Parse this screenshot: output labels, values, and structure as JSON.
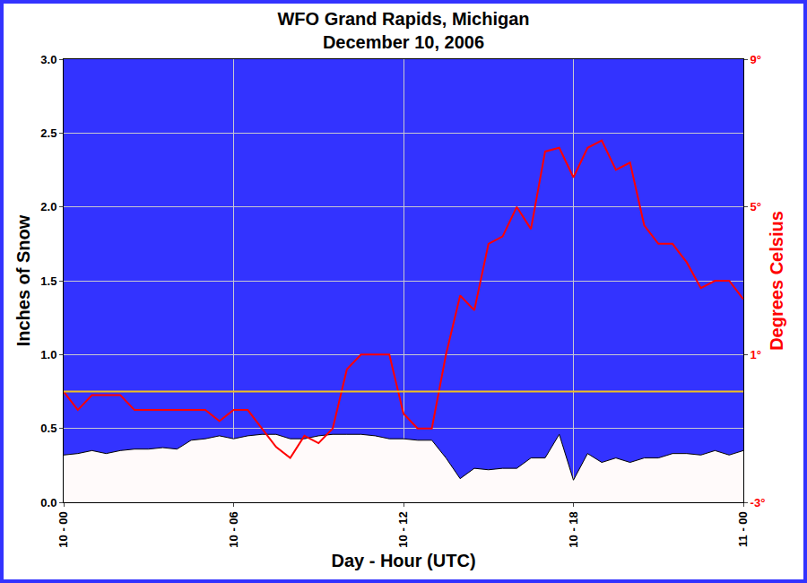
{
  "chart_data": {
    "type": "line",
    "title": "WFO Grand Rapids, Michigan",
    "subtitle": "December 10, 2006",
    "x_label": "Day - Hour (UTC)",
    "y_label": "Inches of Snow",
    "y2_label": "Degrees Celsius",
    "x": [
      0,
      0.5,
      1,
      1.5,
      2,
      2.5,
      3,
      3.5,
      4,
      4.5,
      5,
      5.5,
      6,
      6.5,
      7,
      7.5,
      8,
      8.5,
      9,
      9.5,
      10,
      10.5,
      11,
      11.5,
      12,
      12.5,
      13,
      13.5,
      14,
      14.5,
      15,
      15.5,
      16,
      16.5,
      17,
      17.5,
      18,
      18.5,
      19,
      19.5,
      20,
      20.5,
      21,
      21.5,
      22,
      22.5,
      23,
      23.5,
      24
    ],
    "series": [
      {
        "type": "area",
        "color": "#fffafa",
        "values": [
          0.32,
          0.33,
          0.35,
          0.33,
          0.35,
          0.36,
          0.36,
          0.37,
          0.36,
          0.42,
          0.43,
          0.45,
          0.43,
          0.45,
          0.46,
          0.46,
          0.43,
          0.43,
          0.45,
          0.46,
          0.46,
          0.46,
          0.45,
          0.43,
          0.43,
          0.42,
          0.42,
          0.3,
          0.16,
          0.23,
          0.22,
          0.23,
          0.23,
          0.3,
          0.3,
          0.46,
          0.15,
          0.33,
          0.27,
          0.3,
          0.27,
          0.3,
          0.3,
          0.33,
          0.33,
          0.32,
          0.35,
          0.32,
          0.35
        ]
      },
      {
        "type": "line",
        "color": "#ff0000",
        "axis": "y2",
        "values": [
          0.0,
          -0.5,
          -0.1,
          -0.1,
          -0.1,
          -0.5,
          -0.5,
          -0.5,
          -0.5,
          -0.5,
          -0.5,
          -0.8,
          -0.5,
          -0.5,
          -1.0,
          -1.5,
          -1.8,
          -1.2,
          -1.4,
          -1.0,
          0.6,
          1.0,
          1.0,
          1.0,
          -0.6,
          -1.0,
          -1.0,
          1.0,
          2.6,
          2.2,
          4.0,
          4.2,
          5.0,
          4.4,
          6.5,
          6.6,
          5.8,
          6.6,
          6.8,
          6.0,
          6.2,
          4.5,
          4.0,
          4.0,
          3.5,
          2.8,
          3.0,
          3.0,
          2.5
        ]
      }
    ],
    "reference_lines": [
      {
        "value": 0,
        "axis": "y2",
        "color": "#f0c020"
      }
    ],
    "xlim": [
      0,
      24
    ],
    "xticks": [
      {
        "value": 0,
        "label": "10 - 00"
      },
      {
        "value": 6,
        "label": "10 - 06"
      },
      {
        "value": 12,
        "label": "10 - 12"
      },
      {
        "value": 18,
        "label": "10 - 18"
      },
      {
        "value": 24,
        "label": "11 - 00"
      }
    ],
    "ylim": [
      0,
      3
    ],
    "yticks": [
      {
        "value": 0,
        "label": "0.0"
      },
      0.5,
      {
        "value": 1,
        "label": "1.0"
      },
      1.5,
      {
        "value": 2,
        "label": "2.0"
      },
      2.5,
      {
        "value": 3,
        "label": "3.0"
      }
    ],
    "y2lim": [
      -3,
      9
    ],
    "y2ticks": [
      {
        "value": -3,
        "label": "-3°"
      },
      {
        "value": 1,
        "label": "1°"
      },
      {
        "value": 5,
        "label": "5°"
      },
      {
        "value": 9,
        "label": "9°"
      }
    ],
    "grid": true,
    "color": "#3333ff"
  }
}
